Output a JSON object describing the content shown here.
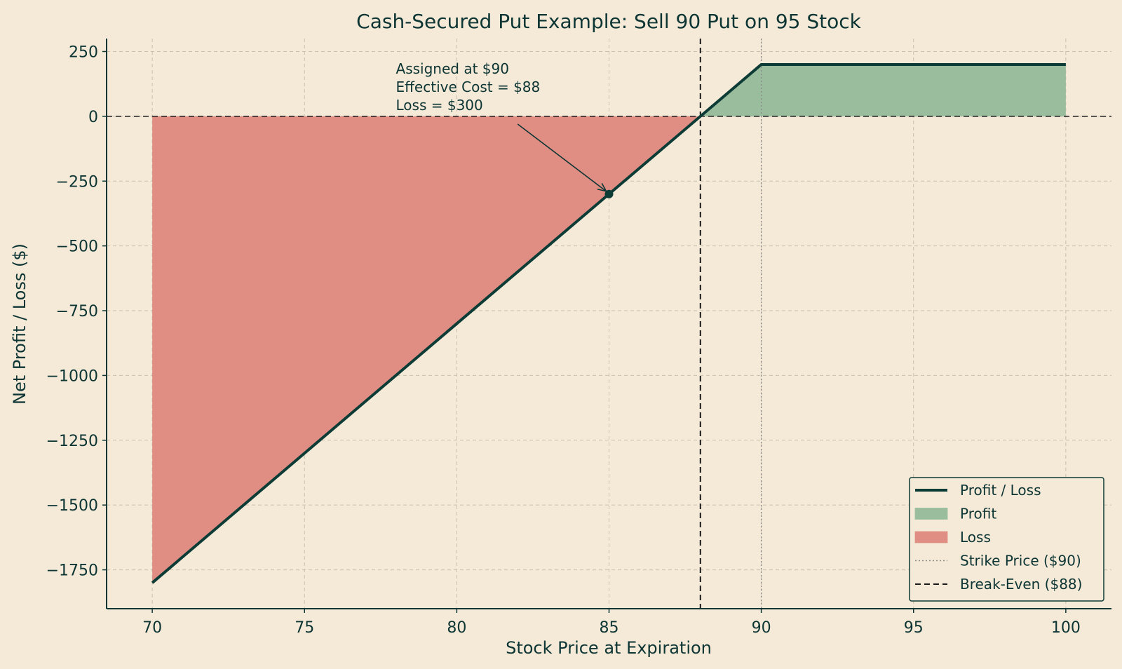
{
  "chart_data": {
    "type": "line",
    "title": "Cash-Secured Put Example: Sell 90 Put on 95 Stock",
    "xlabel": "Stock Price at Expiration",
    "ylabel": "Net Profit / Loss ($)",
    "xlim": [
      68.5,
      101.5
    ],
    "ylim": [
      -1900,
      300
    ],
    "xticks": [
      70,
      75,
      80,
      85,
      90,
      95,
      100
    ],
    "yticks": [
      250,
      0,
      -250,
      -500,
      -750,
      -1000,
      -1250,
      -1500,
      -1750
    ],
    "xtick_labels": [
      "70",
      "75",
      "80",
      "85",
      "90",
      "95",
      "100"
    ],
    "ytick_labels": [
      "250",
      "0",
      "−250",
      "−500",
      "−750",
      "−1000",
      "−1250",
      "−1500",
      "−1750"
    ],
    "grid": true,
    "legend_position": "lower-right",
    "series": [
      {
        "name": "Profit / Loss",
        "x": [
          70,
          88,
          90,
          100
        ],
        "y": [
          -1800,
          0,
          200,
          200
        ],
        "color": "#0d3b36"
      }
    ],
    "fills": [
      {
        "name": "Profit",
        "x": [
          88,
          90,
          100
        ],
        "y": [
          0,
          200,
          200
        ],
        "color": "#99bd9d"
      },
      {
        "name": "Loss",
        "x": [
          70,
          88
        ],
        "y": [
          -1800,
          0
        ],
        "color": "#e08e83"
      }
    ],
    "reference_lines": [
      {
        "name": "Strike Price ($90)",
        "orientation": "vertical",
        "value": 90,
        "style": "dotted",
        "color": "#8a8a8a"
      },
      {
        "name": "Break-Even ($88)",
        "orientation": "vertical",
        "value": 88,
        "style": "dashed",
        "color": "#1a1a1a"
      },
      {
        "name": "",
        "orientation": "horizontal",
        "value": 0,
        "style": "dashed",
        "color": "#1a1a1a"
      }
    ],
    "marker": {
      "x": 85,
      "y": -300
    },
    "annotation": {
      "lines": [
        "Assigned at $90",
        "Effective Cost = $88",
        "Loss = $300"
      ],
      "text_x": 78,
      "text_y": 165,
      "arrow_from_x": 82,
      "arrow_from_y": -30
    },
    "legend": [
      {
        "label": "Profit / Loss",
        "kind": "line",
        "color": "#0d3b36"
      },
      {
        "label": "Profit",
        "kind": "patch",
        "color": "#99bd9d"
      },
      {
        "label": "Loss",
        "kind": "patch",
        "color": "#e08e83"
      },
      {
        "label": "Strike Price ($90)",
        "kind": "dotted",
        "color": "#8a8a8a"
      },
      {
        "label": "Break-Even ($88)",
        "kind": "dashed",
        "color": "#1a1a1a"
      }
    ]
  }
}
